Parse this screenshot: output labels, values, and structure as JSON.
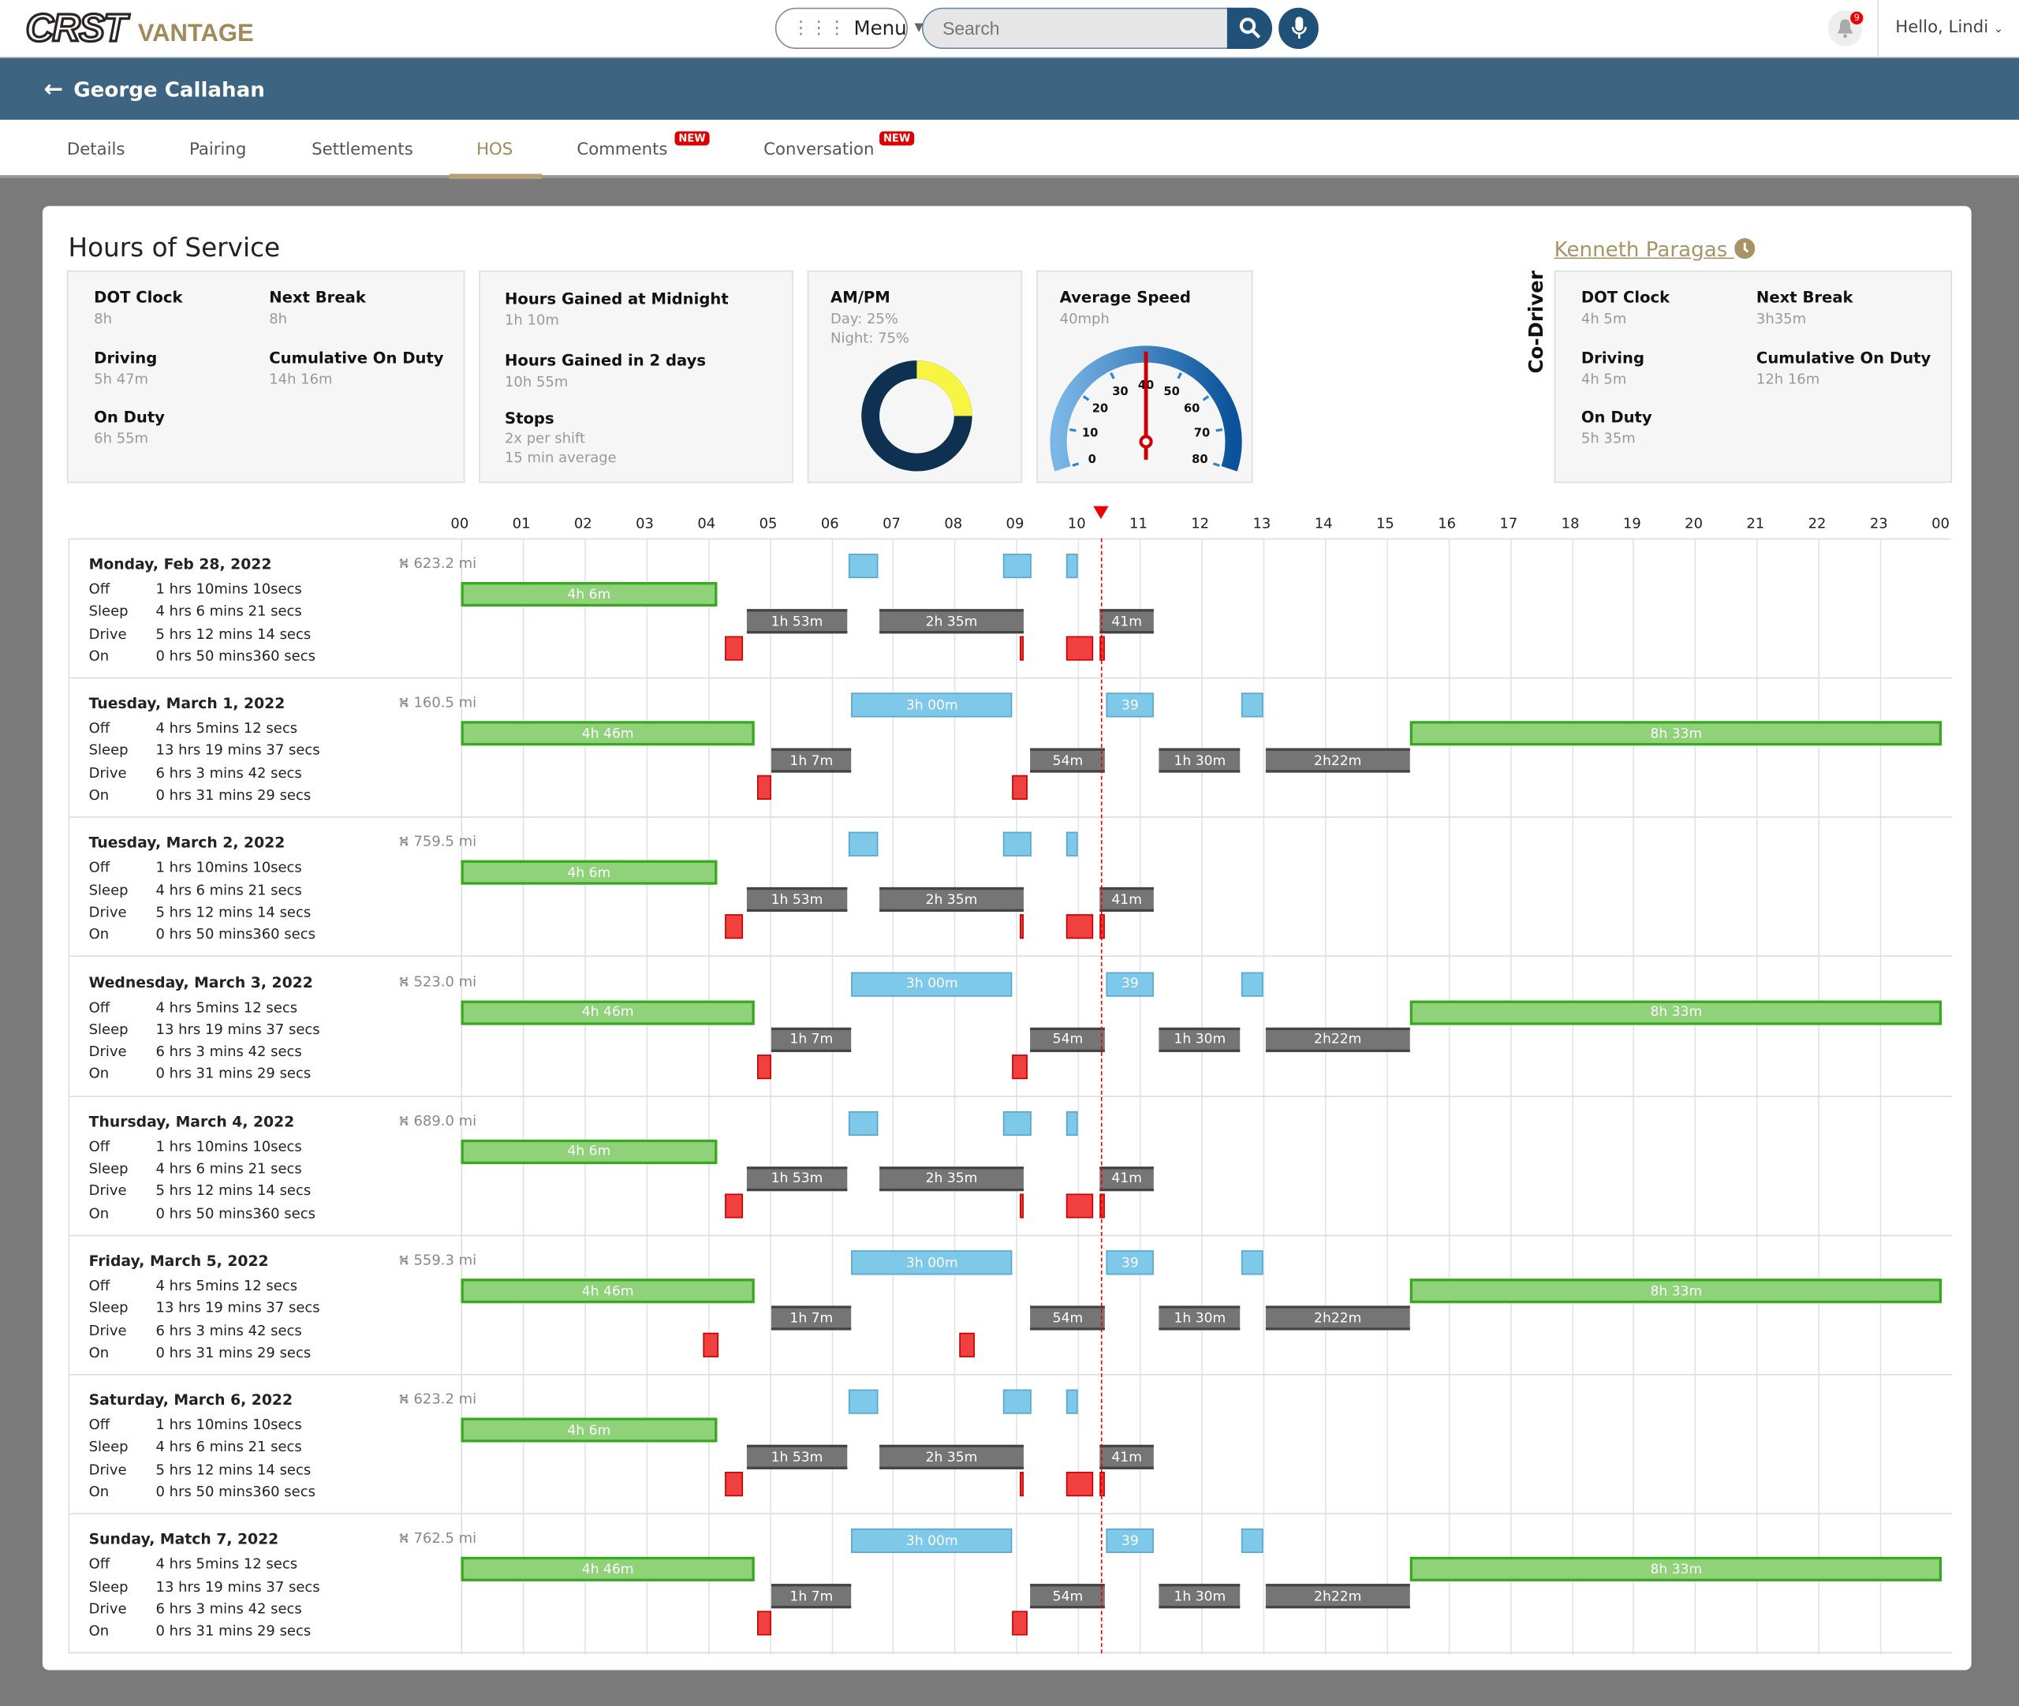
{
  "header": {
    "logo": "CRST VANTAGE",
    "logo_main": "CRST",
    "logo_sub": "VANTAGE",
    "menu_label": "Menu",
    "search_placeholder": "Search",
    "notification_count": "9",
    "greeting": "Hello, Lindi"
  },
  "banner": {
    "driver_name": "George Callahan"
  },
  "tabs": [
    {
      "label": "Details"
    },
    {
      "label": "Pairing"
    },
    {
      "label": "Settlements"
    },
    {
      "label": "HOS",
      "active": true
    },
    {
      "label": "Comments",
      "badge": "NEW"
    },
    {
      "label": "Conversation",
      "badge": "NEW"
    }
  ],
  "hos": {
    "title": "Hours of Service",
    "driver_stats": {
      "dot_clock_label": "DOT Clock",
      "dot_clock": "8h",
      "next_break_label": "Next Break",
      "next_break": "8h",
      "driving_label": "Driving",
      "driving": "5h 47m",
      "cumulative_label": "Cumulative On Duty",
      "cumulative": "14h 16m",
      "on_duty_label": "On Duty",
      "on_duty": "6h 55m"
    },
    "gains": {
      "midnight_label": "Hours Gained at Midnight",
      "midnight": "1h 10m",
      "two_days_label": "Hours Gained in 2 days",
      "two_days": "10h 55m",
      "stops_label": "Stops",
      "stops_per_shift": "2x per shift",
      "stops_avg": "15 min average"
    },
    "ampm": {
      "label": "AM/PM",
      "day": "Day: 25%",
      "night": "Night: 75%",
      "day_pct": 25,
      "night_pct": 75,
      "day_color": "#f8f442",
      "night_color": "#0e3152"
    },
    "speed": {
      "label": "Average Speed",
      "value_text": "40mph",
      "value": 40,
      "min": 0,
      "max": 80,
      "ticks": [
        "0",
        "10",
        "20",
        "30",
        "40",
        "50",
        "60",
        "70",
        "80"
      ]
    },
    "co_driver": {
      "section_label": "Co-Driver",
      "name": "Kenneth Paragas",
      "dot_clock_label": "DOT Clock",
      "dot_clock": "4h 5m",
      "next_break_label": "Next Break",
      "next_break": "3h35m",
      "driving_label": "Driving",
      "driving": "4h 5m",
      "cumulative_label": "Cumulative On Duty",
      "cumulative": "12h 16m",
      "on_duty_label": "On Duty",
      "on_duty": "5h 35m"
    }
  },
  "timeline": {
    "hours": [
      "00",
      "01",
      "02",
      "03",
      "04",
      "05",
      "06",
      "07",
      "08",
      "09",
      "10",
      "11",
      "12",
      "13",
      "14",
      "15",
      "16",
      "17",
      "18",
      "19",
      "20",
      "21",
      "22",
      "23",
      "00"
    ],
    "current_time_hour": 10.4,
    "status_labels": [
      "Off",
      "Sleep",
      "Drive",
      "On"
    ],
    "colors": {
      "off": "#8fd27a",
      "sleep": "#757575",
      "blue": "#7ec8ea",
      "red": "#f04040"
    },
    "days": [
      {
        "date": "Monday, Feb 28, 2022",
        "miles": "623.2 mi",
        "totals": [
          "1 hrs 10mins 10secs",
          "4 hrs 6 mins 21 secs",
          "5 hrs 12 mins 14 secs",
          "0 hrs 50 mins360 secs"
        ],
        "segments": [
          {
            "lane": "blue",
            "start": 6.28,
            "end": 6.76,
            "label": ""
          },
          {
            "lane": "blue",
            "start": 8.79,
            "end": 9.25,
            "label": ""
          },
          {
            "lane": "blue",
            "start": 9.81,
            "end": 10.0,
            "label": ""
          },
          {
            "lane": "off",
            "start": 0,
            "end": 4.15,
            "label": "4h 6m"
          },
          {
            "lane": "sleep",
            "start": 4.63,
            "end": 6.26,
            "label": "1h 53m"
          },
          {
            "lane": "sleep",
            "start": 6.78,
            "end": 9.12,
            "label": "2h 35m"
          },
          {
            "lane": "sleep",
            "start": 10.35,
            "end": 11.23,
            "label": "41m"
          },
          {
            "lane": "red",
            "start": 4.28,
            "end": 4.57,
            "label": ""
          },
          {
            "lane": "red",
            "start": 9.06,
            "end": 9.12,
            "label": ""
          },
          {
            "lane": "red",
            "start": 9.81,
            "end": 10.25,
            "label": ""
          },
          {
            "lane": "red",
            "start": 10.35,
            "end": 10.43,
            "label": ""
          }
        ]
      },
      {
        "date": "Tuesday, March 1, 2022",
        "miles": "160.5 mi",
        "totals": [
          "4 hrs 5mins 12 secs",
          "13 hrs 19 mins 37 secs",
          "6 hrs 3 mins 42 secs",
          "0 hrs 31 mins 29 secs"
        ],
        "segments": [
          {
            "lane": "blue",
            "start": 6.33,
            "end": 8.94,
            "label": "3h 00m"
          },
          {
            "lane": "blue",
            "start": 10.46,
            "end": 11.23,
            "label": "39"
          },
          {
            "lane": "blue",
            "start": 12.65,
            "end": 13.0,
            "label": ""
          },
          {
            "lane": "off",
            "start": 0,
            "end": 4.76,
            "label": "4h 46m"
          },
          {
            "lane": "off",
            "start": 15.39,
            "end": 24,
            "label": "8h 33m"
          },
          {
            "lane": "sleep",
            "start": 5.03,
            "end": 6.33,
            "label": "1h 7m"
          },
          {
            "lane": "sleep",
            "start": 9.23,
            "end": 10.44,
            "label": "54m"
          },
          {
            "lane": "sleep",
            "start": 11.32,
            "end": 12.63,
            "label": "1h 30m"
          },
          {
            "lane": "sleep",
            "start": 13.05,
            "end": 15.37,
            "label": "2h22m"
          },
          {
            "lane": "red",
            "start": 4.8,
            "end": 5.03,
            "label": ""
          },
          {
            "lane": "red",
            "start": 8.94,
            "end": 9.19,
            "label": ""
          }
        ]
      },
      {
        "date": "Tuesday, March 2, 2022",
        "miles": "759.5 mi",
        "totals": [
          "1 hrs 10mins 10secs",
          "4 hrs 6 mins 21 secs",
          "5 hrs 12 mins 14 secs",
          "0 hrs 50 mins360 secs"
        ],
        "segments": [
          {
            "lane": "blue",
            "start": 6.28,
            "end": 6.76,
            "label": ""
          },
          {
            "lane": "blue",
            "start": 8.79,
            "end": 9.25,
            "label": ""
          },
          {
            "lane": "blue",
            "start": 9.81,
            "end": 10.0,
            "label": ""
          },
          {
            "lane": "off",
            "start": 0,
            "end": 4.15,
            "label": "4h 6m"
          },
          {
            "lane": "sleep",
            "start": 4.63,
            "end": 6.26,
            "label": "1h 53m"
          },
          {
            "lane": "sleep",
            "start": 6.78,
            "end": 9.12,
            "label": "2h 35m"
          },
          {
            "lane": "sleep",
            "start": 10.35,
            "end": 11.23,
            "label": "41m"
          },
          {
            "lane": "red",
            "start": 4.28,
            "end": 4.57,
            "label": ""
          },
          {
            "lane": "red",
            "start": 9.06,
            "end": 9.12,
            "label": ""
          },
          {
            "lane": "red",
            "start": 9.81,
            "end": 10.25,
            "label": ""
          },
          {
            "lane": "red",
            "start": 10.35,
            "end": 10.43,
            "label": ""
          }
        ]
      },
      {
        "date": "Wednesday, March 3, 2022",
        "miles": "523.0 mi",
        "totals": [
          "4 hrs 5mins 12 secs",
          "13 hrs 19 mins 37 secs",
          "6 hrs 3 mins 42 secs",
          "0 hrs 31 mins 29 secs"
        ],
        "segments": [
          {
            "lane": "blue",
            "start": 6.33,
            "end": 8.94,
            "label": "3h 00m"
          },
          {
            "lane": "blue",
            "start": 10.46,
            "end": 11.23,
            "label": "39"
          },
          {
            "lane": "blue",
            "start": 12.65,
            "end": 13.0,
            "label": ""
          },
          {
            "lane": "off",
            "start": 0,
            "end": 4.76,
            "label": "4h 46m"
          },
          {
            "lane": "off",
            "start": 15.39,
            "end": 24,
            "label": "8h 33m"
          },
          {
            "lane": "sleep",
            "start": 5.03,
            "end": 6.33,
            "label": "1h 7m"
          },
          {
            "lane": "sleep",
            "start": 9.23,
            "end": 10.44,
            "label": "54m"
          },
          {
            "lane": "sleep",
            "start": 11.32,
            "end": 12.63,
            "label": "1h 30m"
          },
          {
            "lane": "sleep",
            "start": 13.05,
            "end": 15.37,
            "label": "2h22m"
          },
          {
            "lane": "red",
            "start": 4.8,
            "end": 5.03,
            "label": ""
          },
          {
            "lane": "red",
            "start": 8.94,
            "end": 9.19,
            "label": ""
          }
        ]
      },
      {
        "date": "Thursday, March 4, 2022",
        "miles": "689.0 mi",
        "totals": [
          "1 hrs 10mins 10secs",
          "4 hrs 6 mins 21 secs",
          "5 hrs 12 mins 14 secs",
          "0 hrs 50 mins360 secs"
        ],
        "segments": [
          {
            "lane": "blue",
            "start": 6.28,
            "end": 6.76,
            "label": ""
          },
          {
            "lane": "blue",
            "start": 8.79,
            "end": 9.25,
            "label": ""
          },
          {
            "lane": "blue",
            "start": 9.81,
            "end": 10.0,
            "label": ""
          },
          {
            "lane": "off",
            "start": 0,
            "end": 4.15,
            "label": "4h 6m"
          },
          {
            "lane": "sleep",
            "start": 4.63,
            "end": 6.26,
            "label": "1h 53m"
          },
          {
            "lane": "sleep",
            "start": 6.78,
            "end": 9.12,
            "label": "2h 35m"
          },
          {
            "lane": "sleep",
            "start": 10.35,
            "end": 11.23,
            "label": "41m"
          },
          {
            "lane": "red",
            "start": 4.28,
            "end": 4.57,
            "label": ""
          },
          {
            "lane": "red",
            "start": 9.06,
            "end": 9.12,
            "label": ""
          },
          {
            "lane": "red",
            "start": 9.81,
            "end": 10.25,
            "label": ""
          },
          {
            "lane": "red",
            "start": 10.35,
            "end": 10.43,
            "label": ""
          }
        ]
      },
      {
        "date": "Friday, March 5, 2022",
        "miles": "559.3 mi",
        "totals": [
          "4 hrs 5mins 12 secs",
          "13 hrs 19 mins 37 secs",
          "6 hrs 3 mins 42 secs",
          "0 hrs 31 mins 29 secs"
        ],
        "segments": [
          {
            "lane": "blue",
            "start": 6.33,
            "end": 8.94,
            "label": "3h 00m"
          },
          {
            "lane": "blue",
            "start": 10.46,
            "end": 11.23,
            "label": "39"
          },
          {
            "lane": "blue",
            "start": 12.65,
            "end": 13.0,
            "label": ""
          },
          {
            "lane": "off",
            "start": 0,
            "end": 4.76,
            "label": "4h 46m"
          },
          {
            "lane": "off",
            "start": 15.39,
            "end": 24,
            "label": "8h 33m"
          },
          {
            "lane": "sleep",
            "start": 5.03,
            "end": 6.33,
            "label": "1h 7m"
          },
          {
            "lane": "sleep",
            "start": 9.23,
            "end": 10.44,
            "label": "54m"
          },
          {
            "lane": "sleep",
            "start": 11.32,
            "end": 12.63,
            "label": "1h 30m"
          },
          {
            "lane": "sleep",
            "start": 13.05,
            "end": 15.37,
            "label": "2h22m"
          },
          {
            "lane": "red",
            "start": 3.92,
            "end": 4.17,
            "label": ""
          },
          {
            "lane": "red",
            "start": 8.08,
            "end": 8.33,
            "label": ""
          }
        ]
      },
      {
        "date": "Saturday, March 6, 2022",
        "miles": "623.2 mi",
        "totals": [
          "1 hrs 10mins 10secs",
          "4 hrs 6 mins 21 secs",
          "5 hrs 12 mins 14 secs",
          "0 hrs 50 mins360 secs"
        ],
        "segments": [
          {
            "lane": "blue",
            "start": 6.28,
            "end": 6.76,
            "label": ""
          },
          {
            "lane": "blue",
            "start": 8.79,
            "end": 9.25,
            "label": ""
          },
          {
            "lane": "blue",
            "start": 9.81,
            "end": 10.0,
            "label": ""
          },
          {
            "lane": "off",
            "start": 0,
            "end": 4.15,
            "label": "4h 6m"
          },
          {
            "lane": "sleep",
            "start": 4.63,
            "end": 6.26,
            "label": "1h 53m"
          },
          {
            "lane": "sleep",
            "start": 6.78,
            "end": 9.12,
            "label": "2h 35m"
          },
          {
            "lane": "sleep",
            "start": 10.35,
            "end": 11.23,
            "label": "41m"
          },
          {
            "lane": "red",
            "start": 4.28,
            "end": 4.57,
            "label": ""
          },
          {
            "lane": "red",
            "start": 9.06,
            "end": 9.12,
            "label": ""
          },
          {
            "lane": "red",
            "start": 9.81,
            "end": 10.25,
            "label": ""
          },
          {
            "lane": "red",
            "start": 10.35,
            "end": 10.43,
            "label": ""
          }
        ]
      },
      {
        "date": "Sunday, Match 7, 2022",
        "miles": "762.5 mi",
        "totals": [
          "4 hrs 5mins 12 secs",
          "13 hrs 19 mins 37 secs",
          "6 hrs 3 mins 42 secs",
          "0 hrs 31 mins 29 secs"
        ],
        "segments": [
          {
            "lane": "blue",
            "start": 6.33,
            "end": 8.94,
            "label": "3h 00m"
          },
          {
            "lane": "blue",
            "start": 10.46,
            "end": 11.23,
            "label": "39"
          },
          {
            "lane": "blue",
            "start": 12.65,
            "end": 13.0,
            "label": ""
          },
          {
            "lane": "off",
            "start": 0,
            "end": 4.76,
            "label": "4h 46m"
          },
          {
            "lane": "off",
            "start": 15.39,
            "end": 24,
            "label": "8h 33m"
          },
          {
            "lane": "sleep",
            "start": 5.03,
            "end": 6.33,
            "label": "1h 7m"
          },
          {
            "lane": "sleep",
            "start": 9.23,
            "end": 10.44,
            "label": "54m"
          },
          {
            "lane": "sleep",
            "start": 11.32,
            "end": 12.63,
            "label": "1h 30m"
          },
          {
            "lane": "sleep",
            "start": 13.05,
            "end": 15.37,
            "label": "2h22m"
          },
          {
            "lane": "red",
            "start": 4.8,
            "end": 5.03,
            "label": ""
          },
          {
            "lane": "red",
            "start": 8.94,
            "end": 9.19,
            "label": ""
          }
        ]
      }
    ]
  }
}
